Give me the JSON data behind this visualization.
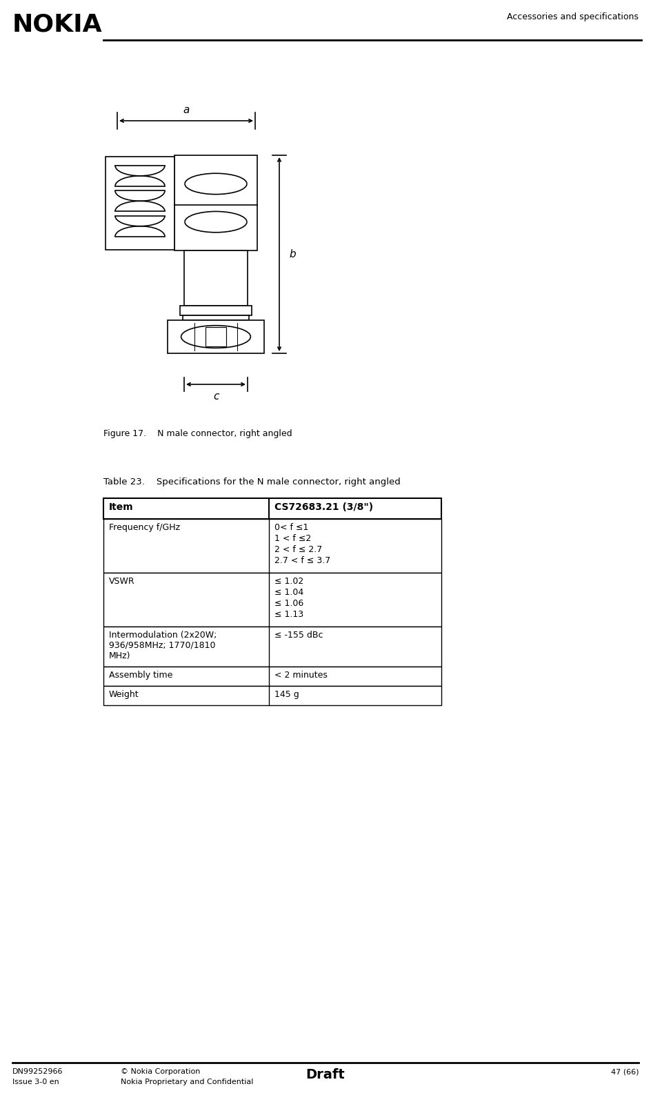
{
  "page_width": 9.44,
  "page_height": 15.97,
  "background_color": "#ffffff",
  "header_text_right": "Accessories and specifications",
  "footer_left1": "DN99252966",
  "footer_left2": "Issue 3-0 en",
  "footer_mid1": "© Nokia Corporation",
  "footer_mid2": "Nokia Proprietary and Confidential",
  "footer_center": "Draft",
  "footer_right": "47 (66)",
  "figure_caption": "Figure 17.    N male connector, right angled",
  "table_title": "Table 23.    Specifications for the N male connector, right angled",
  "table_header_col1": "Item",
  "table_header_col2": "CS72683.21 (3/8\")",
  "table_rows": [
    {
      "col1": "Frequency f/GHz",
      "col2": [
        "0< f ≤1",
        "1 < f ≤2",
        "2 < f ≤ 2.7",
        "2.7 < f ≤ 3.7"
      ]
    },
    {
      "col1": "VSWR",
      "col2": [
        "≤ 1.02",
        "≤ 1.04",
        "≤ 1.06",
        "≤ 1.13"
      ]
    },
    {
      "col1": "Intermodulation (2x20W;\n936/958MHz; 1770/1810\nMHz)",
      "col2": [
        "≤ -155 dBc"
      ]
    },
    {
      "col1": "Assembly time",
      "col2": [
        "< 2 minutes"
      ]
    },
    {
      "col1": "Weight",
      "col2": [
        "145 g"
      ]
    }
  ],
  "dim_label_a": "a",
  "dim_label_b": "b",
  "dim_label_c": "c",
  "nokia_logo_text": "NOKIA"
}
